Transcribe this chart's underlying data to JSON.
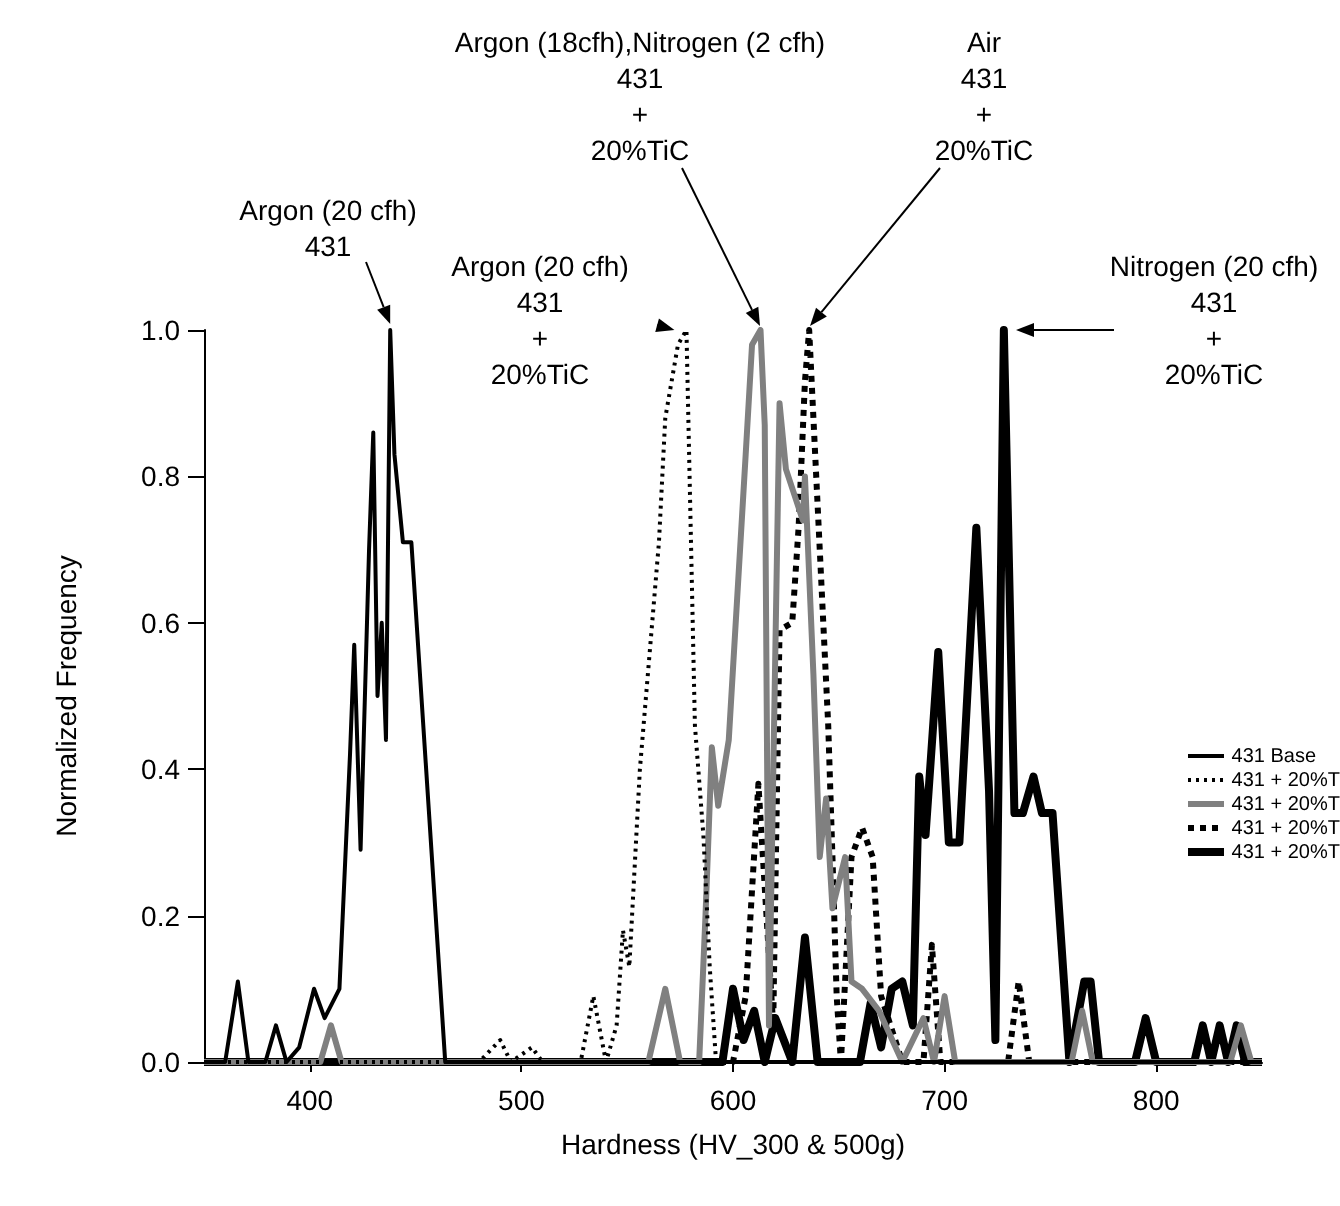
{
  "chart_data": {
    "type": "line",
    "xlabel": "Hardness (HV_300 & 500g)",
    "ylabel": "Normalized Frequency",
    "xlim": [
      350,
      850
    ],
    "xticks": [
      400,
      500,
      600,
      700,
      800
    ],
    "ylim": [
      0,
      1
    ],
    "yticks": [
      {
        "value": 0,
        "label": "0.0"
      },
      {
        "value": 0.2,
        "label": "0.2"
      },
      {
        "value": 0.4,
        "label": "0.4"
      },
      {
        "value": 0.6,
        "label": "0.6"
      },
      {
        "value": 0.8,
        "label": "0.8"
      },
      {
        "value": 1,
        "label": "1.0"
      }
    ],
    "grid": false,
    "legend": "right",
    "marker": "none",
    "series": [
      {
        "name": "431 Base",
        "color": "#000000",
        "line_style": "solid",
        "x": [
          350,
          360,
          366,
          371,
          379,
          384,
          389,
          395,
          402,
          407,
          414,
          419,
          421,
          424,
          428,
          430,
          432,
          434,
          436,
          438,
          440,
          444,
          448,
          464,
          520,
          600,
          700,
          850
        ],
        "values": [
          0,
          0,
          0.11,
          0,
          0,
          0.05,
          0,
          0.02,
          0.1,
          0.06,
          0.1,
          0.42,
          0.57,
          0.29,
          0.7,
          0.86,
          0.5,
          0.6,
          0.44,
          1.0,
          0.83,
          0.71,
          0.71,
          0,
          0,
          0,
          0,
          0
        ]
      },
      {
        "name": "431 + 20%T",
        "color": "#000000",
        "line_style": "dotted",
        "x": [
          350,
          480,
          490,
          495,
          505,
          510,
          515,
          528,
          534,
          540,
          545,
          548,
          551,
          556,
          565,
          568,
          574,
          578,
          582,
          586,
          589,
          592,
          650,
          850
        ],
        "values": [
          0,
          0,
          0.03,
          0,
          0.02,
          0,
          0,
          0,
          0.09,
          0,
          0.05,
          0.18,
          0.13,
          0.4,
          0.71,
          0.88,
          0.98,
          1.0,
          0.46,
          0.31,
          0.13,
          0,
          0,
          0
        ]
      },
      {
        "name": "431 + 20%T",
        "color": "#808080",
        "line_style": "solid",
        "x": [
          350,
          405,
          410,
          415,
          560,
          568,
          575,
          584,
          587,
          590,
          593,
          598,
          606,
          609,
          613,
          615,
          617,
          622,
          625,
          633,
          634,
          638,
          641,
          644,
          647,
          653,
          656,
          661,
          669,
          680,
          690,
          695,
          700,
          705,
          755,
          760,
          765,
          770,
          835,
          840,
          845,
          850
        ],
        "values": [
          0,
          0,
          0.05,
          0,
          0,
          0.1,
          0,
          0,
          0.2,
          0.43,
          0.35,
          0.44,
          0.83,
          0.98,
          1.0,
          0.87,
          0.05,
          0.9,
          0.81,
          0.74,
          0.8,
          0.53,
          0.28,
          0.36,
          0.21,
          0.28,
          0.11,
          0.1,
          0.07,
          0,
          0.06,
          0,
          0.09,
          0,
          0,
          0,
          0.07,
          0,
          0,
          0.05,
          0,
          0
        ]
      },
      {
        "name": "431 + 20%T",
        "color": "#000000",
        "line_style": "dashed",
        "x": [
          350,
          600,
          606,
          612,
          619,
          622,
          628,
          631,
          634,
          636,
          639,
          642,
          645,
          647,
          649,
          651,
          656,
          661,
          666,
          670,
          680,
          690,
          694,
          698,
          730,
          735,
          740,
          850
        ],
        "values": [
          0,
          0,
          0.09,
          0.38,
          0.05,
          0.59,
          0.6,
          0.73,
          0.93,
          1.0,
          0.82,
          0.64,
          0.46,
          0.28,
          0.09,
          0,
          0.28,
          0.32,
          0.28,
          0.09,
          0,
          0,
          0.16,
          0,
          0,
          0.11,
          0,
          0
        ]
      },
      {
        "name": "431 + 20%T",
        "color": "#000000",
        "line_style": "solid",
        "x": [
          350,
          595,
          600,
          605,
          610,
          615,
          620,
          628,
          634,
          640,
          660,
          665,
          670,
          675,
          680,
          685,
          688,
          691,
          697,
          702,
          707,
          715,
          721,
          724,
          728,
          733,
          737,
          742,
          746,
          751,
          759,
          766,
          769,
          773,
          790,
          795,
          800,
          818,
          822,
          826,
          830,
          834,
          838,
          842,
          850
        ],
        "values": [
          0,
          0,
          0.1,
          0.03,
          0.07,
          0,
          0.06,
          0,
          0.17,
          0,
          0,
          0.08,
          0.02,
          0.1,
          0.11,
          0.05,
          0.39,
          0.31,
          0.56,
          0.3,
          0.3,
          0.73,
          0.37,
          0.03,
          1.0,
          0.34,
          0.34,
          0.39,
          0.34,
          0.34,
          0,
          0.11,
          0.11,
          0,
          0,
          0.06,
          0,
          0,
          0.05,
          0,
          0.05,
          0,
          0.05,
          0,
          0
        ]
      }
    ],
    "annotations": [
      {
        "text": "Argon (20 cfh)\n431",
        "x": 438,
        "y": 1.0
      },
      {
        "text": "Argon (20 cfh)\n431\n+\n20%TiC",
        "x": 578,
        "y": 1.0
      },
      "Argon (18cfh),Nitrogen (2 cfh)\n431\n+\n20%TiC",
      "Air\n431\n+\n20%TiC",
      "Nitrogen (20 cfh)\n431\n+\n20%TiC"
    ]
  }
}
